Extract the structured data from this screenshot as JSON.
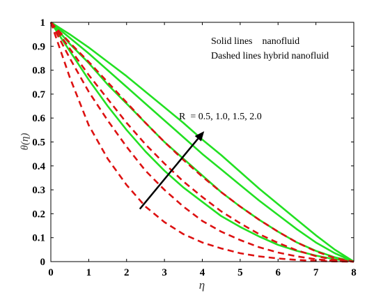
{
  "chart_data": {
    "type": "line",
    "xlabel": "η",
    "ylabel": "θ(η)",
    "xlim": [
      0,
      8
    ],
    "ylim": [
      0,
      1
    ],
    "x_ticks": [
      "0",
      "1",
      "2",
      "3",
      "4",
      "5",
      "6",
      "7",
      "8"
    ],
    "y_ticks": [
      "0",
      "0.1",
      "0.2",
      "0.3",
      "0.4",
      "0.5",
      "0.6",
      "0.7",
      "0.8",
      "0.9",
      "1"
    ],
    "legend": [
      "Solid lines    nanofluid",
      "Dashed lines hybrid nanofluid"
    ],
    "annotation": "R  = 0.5, 1.0, 1.5, 2.0",
    "colors": {
      "nanofluid": "#22e022",
      "hybrid": "#dd1111",
      "arrow": "#000000"
    },
    "x": [
      0,
      0.5,
      1,
      1.5,
      2,
      2.5,
      3,
      3.5,
      4,
      4.5,
      5,
      5.5,
      6,
      6.5,
      7,
      7.5,
      8
    ],
    "series": [
      {
        "group": "nanofluid",
        "R": 0.5,
        "values": [
          1,
          0.88,
          0.76,
          0.65,
          0.55,
          0.46,
          0.38,
          0.31,
          0.25,
          0.19,
          0.145,
          0.105,
          0.07,
          0.045,
          0.025,
          0.01,
          0
        ]
      },
      {
        "group": "nanofluid",
        "R": 1.0,
        "values": [
          1,
          0.91,
          0.83,
          0.74,
          0.66,
          0.58,
          0.5,
          0.43,
          0.36,
          0.29,
          0.23,
          0.175,
          0.125,
          0.08,
          0.045,
          0.018,
          0
        ]
      },
      {
        "group": "nanofluid",
        "R": 1.5,
        "values": [
          1,
          0.935,
          0.87,
          0.8,
          0.73,
          0.66,
          0.59,
          0.52,
          0.45,
          0.385,
          0.32,
          0.255,
          0.195,
          0.135,
          0.08,
          0.035,
          0
        ]
      },
      {
        "group": "nanofluid",
        "R": 2.0,
        "values": [
          1,
          0.95,
          0.895,
          0.835,
          0.775,
          0.71,
          0.645,
          0.58,
          0.51,
          0.445,
          0.375,
          0.305,
          0.24,
          0.175,
          0.11,
          0.05,
          0
        ]
      },
      {
        "group": "hybrid",
        "R": 0.5,
        "values": [
          1,
          0.77,
          0.57,
          0.43,
          0.32,
          0.23,
          0.165,
          0.115,
          0.08,
          0.055,
          0.035,
          0.022,
          0.013,
          0.007,
          0.003,
          0.001,
          0
        ]
      },
      {
        "group": "hybrid",
        "R": 1.0,
        "values": [
          1,
          0.85,
          0.71,
          0.59,
          0.48,
          0.38,
          0.3,
          0.23,
          0.17,
          0.125,
          0.09,
          0.06,
          0.038,
          0.022,
          0.01,
          0.003,
          0
        ]
      },
      {
        "group": "hybrid",
        "R": 1.5,
        "values": [
          1,
          0.89,
          0.78,
          0.68,
          0.58,
          0.49,
          0.41,
          0.335,
          0.27,
          0.21,
          0.16,
          0.115,
          0.078,
          0.047,
          0.023,
          0.007,
          0
        ]
      },
      {
        "group": "hybrid",
        "R": 2.0,
        "values": [
          1,
          0.915,
          0.835,
          0.75,
          0.665,
          0.58,
          0.5,
          0.425,
          0.355,
          0.29,
          0.23,
          0.175,
          0.125,
          0.08,
          0.043,
          0.015,
          0
        ]
      }
    ],
    "arrow": {
      "from": [
        2.35,
        0.22
      ],
      "to": [
        4.05,
        0.545
      ]
    },
    "grid": false
  }
}
